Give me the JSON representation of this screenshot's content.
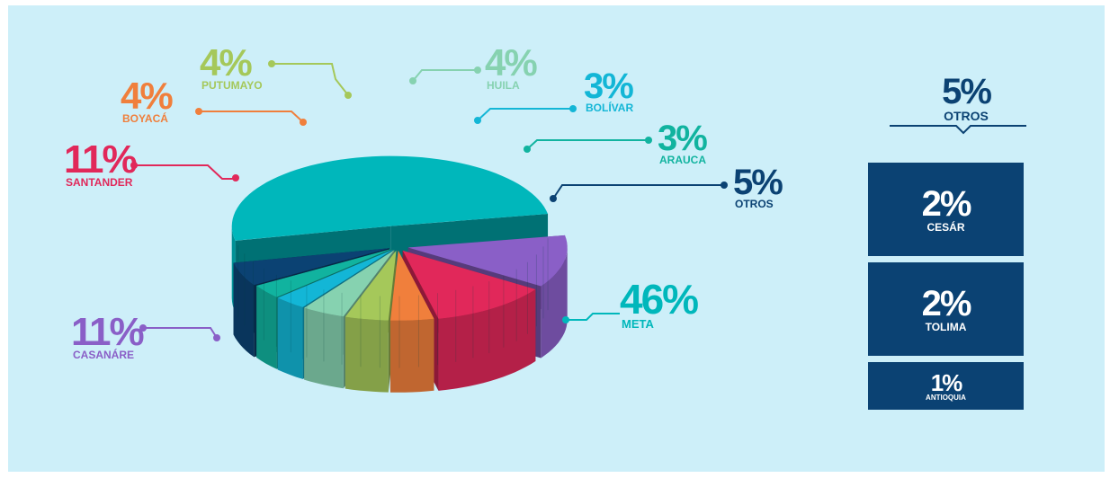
{
  "chart_data": {
    "type": "pie",
    "style": "3d-exploded",
    "slices": [
      {
        "label": "META",
        "value_text": "46%",
        "value": 46,
        "color": "#00b7bb"
      },
      {
        "label": "CASANÁRE",
        "value_text": "11%",
        "value": 11,
        "color": "#8a5fc7"
      },
      {
        "label": "SANTANDER",
        "value_text": "11%",
        "value": 11,
        "color": "#e1285a"
      },
      {
        "label": "BOYACÁ",
        "value_text": "4%",
        "value": 4,
        "color": "#f07f3c"
      },
      {
        "label": "PUTUMAYO",
        "value_text": "4%",
        "value": 4,
        "color": "#a5c85a"
      },
      {
        "label": "HUILA",
        "value_text": "4%",
        "value": 4,
        "color": "#86d2b0"
      },
      {
        "label": "BOLÍVAR",
        "value_text": "3%",
        "value": 3,
        "color": "#13b6d6"
      },
      {
        "label": "ARAUCA",
        "value_text": "3%",
        "value": 3,
        "color": "#11b39f"
      },
      {
        "label": "OTROS",
        "value_text": "5%",
        "value": 5,
        "color": "#0b4273"
      }
    ]
  },
  "otros_breakdown": {
    "header": {
      "value_text": "5%",
      "label": "OTROS"
    },
    "items": [
      {
        "value_text": "2%",
        "label": "CESÁR"
      },
      {
        "value_text": "2%",
        "label": "TOLIMA"
      },
      {
        "value_text": "1%",
        "label": "ANTIOQUIA"
      }
    ],
    "color": "#0b4273"
  }
}
